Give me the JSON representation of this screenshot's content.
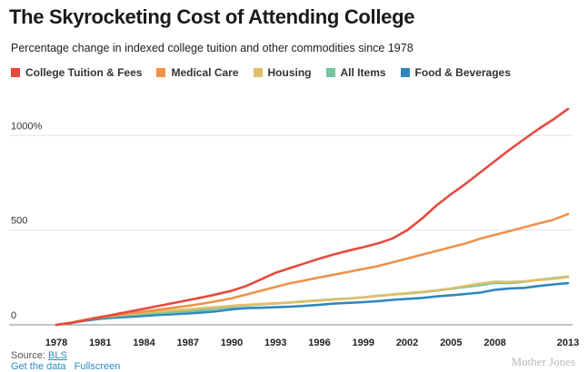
{
  "title": "The Skyrocketing Cost of Attending College",
  "subtitle": "Percentage change in indexed college tuition and other commodities since 1978",
  "source_label": "Source:",
  "source_link": "BLS",
  "links": {
    "data": "Get the data",
    "fullscreen": "Fullscreen"
  },
  "brand": "Mother Jones",
  "chart_data": {
    "type": "line",
    "title": "The Skyrocketing Cost of Attending College",
    "subtitle": "Percentage change in indexed college tuition and other commodities since 1978",
    "xlabel": "",
    "ylabel": "",
    "x": [
      1978,
      1979,
      1980,
      1981,
      1982,
      1983,
      1984,
      1985,
      1986,
      1987,
      1988,
      1989,
      1990,
      1991,
      1992,
      1993,
      1994,
      1995,
      1996,
      1997,
      1998,
      1999,
      2000,
      2001,
      2002,
      2003,
      2004,
      2005,
      2006,
      2007,
      2008,
      2009,
      2010,
      2011,
      2012,
      2013
    ],
    "xticks": [
      1978,
      1981,
      1984,
      1987,
      1990,
      1993,
      1996,
      1999,
      2002,
      2005,
      2008,
      2013
    ],
    "xtick_labels": [
      "1978",
      "1981",
      "1984",
      "1987",
      "1990",
      "1993",
      "1996",
      "1999",
      "2002",
      "2005",
      "2008",
      "2013"
    ],
    "xlim": [
      1978,
      2013
    ],
    "ylim": [
      0,
      1150
    ],
    "yticks": [
      0,
      500,
      1000
    ],
    "ytick_labels": [
      "0",
      "500",
      "1000%"
    ],
    "grid": true,
    "legend_position": "top",
    "series": [
      {
        "name": "College Tuition & Fees",
        "color": "#e8493d",
        "values": [
          0,
          10,
          25,
          40,
          55,
          70,
          85,
          100,
          115,
          130,
          145,
          162,
          180,
          205,
          240,
          275,
          300,
          325,
          350,
          372,
          392,
          410,
          430,
          456,
          500,
          560,
          630,
          690,
          745,
          805,
          865,
          925,
          980,
          1035,
          1085,
          1140
        ]
      },
      {
        "name": "Medical Care",
        "color": "#f0914a",
        "values": [
          0,
          10,
          25,
          40,
          50,
          60,
          70,
          80,
          90,
          100,
          112,
          125,
          140,
          160,
          180,
          200,
          220,
          235,
          250,
          265,
          280,
          295,
          310,
          330,
          350,
          370,
          390,
          410,
          430,
          455,
          475,
          495,
          515,
          535,
          555,
          585
        ]
      },
      {
        "name": "Housing",
        "color": "#e0bf6a",
        "values": [
          0,
          12,
          28,
          42,
          50,
          57,
          64,
          70,
          76,
          82,
          88,
          94,
          100,
          106,
          110,
          114,
          118,
          123,
          128,
          133,
          139,
          145,
          152,
          160,
          167,
          174,
          182,
          192,
          205,
          218,
          228,
          226,
          230,
          236,
          243,
          252
        ]
      },
      {
        "name": "All Items",
        "color": "#74c4a0",
        "values": [
          0,
          11,
          26,
          38,
          46,
          52,
          58,
          63,
          66,
          72,
          78,
          86,
          95,
          103,
          108,
          113,
          118,
          124,
          130,
          135,
          139,
          145,
          154,
          160,
          165,
          172,
          180,
          190,
          200,
          210,
          222,
          220,
          228,
          238,
          246,
          255
        ]
      },
      {
        "name": "Food & Beverages",
        "color": "#2f87be",
        "values": [
          0,
          10,
          22,
          32,
          38,
          42,
          47,
          52,
          56,
          60,
          65,
          72,
          82,
          88,
          90,
          93,
          96,
          100,
          106,
          112,
          116,
          120,
          125,
          132,
          137,
          142,
          150,
          156,
          163,
          170,
          185,
          192,
          195,
          205,
          213,
          220
        ]
      }
    ]
  }
}
